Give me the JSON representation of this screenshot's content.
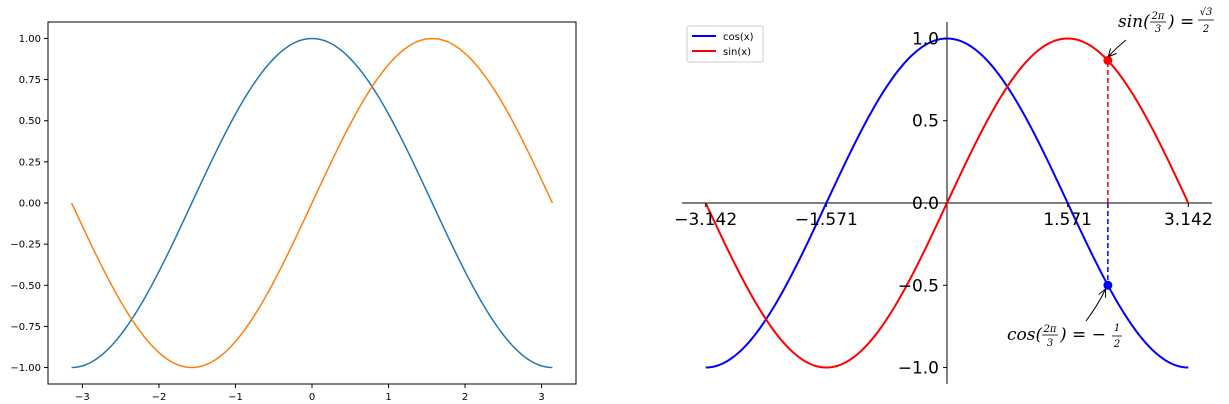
{
  "chart_data": [
    {
      "type": "line",
      "title": "",
      "xlabel": "",
      "ylabel": "",
      "xlim": [
        -3.45,
        3.45
      ],
      "ylim": [
        -1.1,
        1.1
      ],
      "xticks": [
        -3,
        -2,
        -1,
        0,
        1,
        2,
        3
      ],
      "xtick_labels": [
        "−3",
        "−2",
        "−1",
        "0",
        "1",
        "2",
        "3"
      ],
      "yticks": [
        -1.0,
        -0.75,
        -0.5,
        -0.25,
        0.0,
        0.25,
        0.5,
        0.75,
        1.0
      ],
      "ytick_labels": [
        "−1.00",
        "−0.75",
        "−0.50",
        "−0.25",
        "0.00",
        "0.25",
        "0.50",
        "0.75",
        "1.00"
      ],
      "x_range": [
        -3.14159,
        3.14159
      ],
      "series": [
        {
          "function": "cos",
          "color": "#1f77b4"
        },
        {
          "function": "sin",
          "color": "#ff7f0e"
        }
      ],
      "grid": false,
      "legend": false
    },
    {
      "type": "line",
      "title": "",
      "xlabel": "",
      "ylabel": "",
      "xlim": [
        -3.45,
        3.45
      ],
      "ylim": [
        -1.1,
        1.1
      ],
      "spines": "centered at origin",
      "xticks": [
        -3.14159,
        -1.5708,
        1.5708,
        3.14159
      ],
      "xtick_labels": [
        "−3.142",
        "−1.571",
        "1.571",
        "3.142"
      ],
      "yticks": [
        -1.0,
        -0.5,
        0.0,
        0.5,
        1.0
      ],
      "ytick_labels": [
        "−1.0",
        "−0.5",
        "0.0",
        "0.5",
        "1.0"
      ],
      "x_range": [
        -3.14159,
        3.14159
      ],
      "series": [
        {
          "name": "cos(x)",
          "function": "cos",
          "color": "#0000ff"
        },
        {
          "name": "sin(x)",
          "function": "sin",
          "color": "#ff0000"
        }
      ],
      "legend": "upper-left",
      "markers": [
        {
          "x": 2.0944,
          "y": 0.866,
          "color": "#ff0000"
        },
        {
          "x": 2.0944,
          "y": -0.5,
          "color": "#0000ff"
        }
      ],
      "annotations": [
        {
          "id": "sin",
          "func": "sin",
          "eq": "=",
          "value_num": "√3",
          "value_den": "2",
          "arg_num": "2π",
          "arg_den": "3",
          "x": 2.0944,
          "y": 0.866
        },
        {
          "id": "cos",
          "func": "cos",
          "eq": "= −",
          "value_num": "1",
          "value_den": "2",
          "arg_num": "2π",
          "arg_den": "3",
          "x": 2.0944,
          "y": -0.5
        }
      ],
      "grid": false
    }
  ]
}
